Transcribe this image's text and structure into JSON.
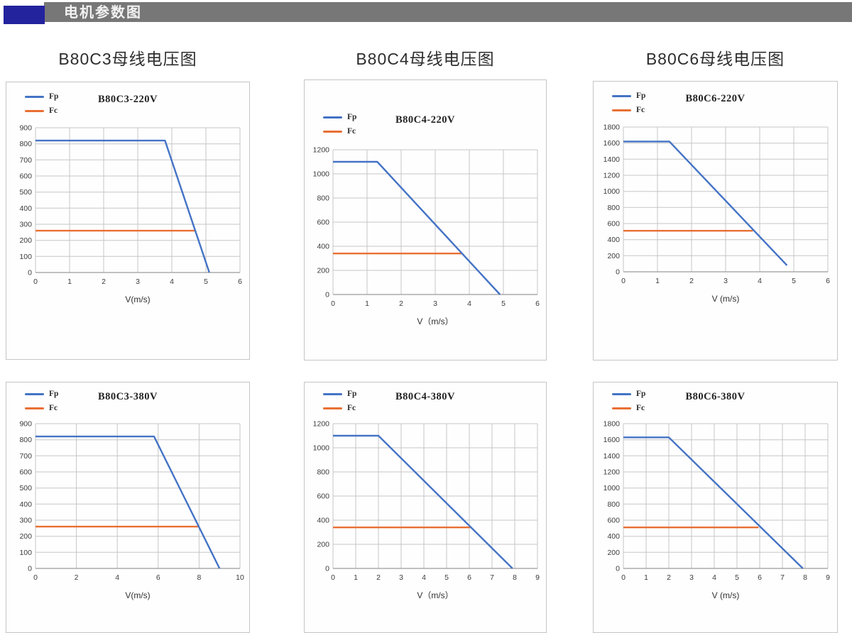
{
  "header": {
    "label": "电机参数图"
  },
  "columns": [
    {
      "title": "B80C3母线电压图"
    },
    {
      "title": "B80C4母线电压图"
    },
    {
      "title": "B80C6母线电压图"
    }
  ],
  "colors": {
    "fp": "#4473c5",
    "fc": "#e96f33",
    "grid": "#c6c6c6",
    "axis": "#9b9b9b",
    "accent_blue": "#23239e",
    "header_gray": "#777777"
  },
  "chart_data": [
    {
      "type": "line",
      "title": "B80C3-220V",
      "xlabel": "V(m/s)",
      "xlim": [
        0,
        6
      ],
      "xticks": [
        0,
        1,
        2,
        3,
        4,
        5,
        6
      ],
      "ylim": [
        0,
        900
      ],
      "yticks": [
        0,
        100,
        200,
        300,
        400,
        500,
        600,
        700,
        800,
        900
      ],
      "grid": true,
      "legend_position": "top-left",
      "series": [
        {
          "name": "Fp",
          "color_key": "fp",
          "points": [
            [
              0,
              820
            ],
            [
              3.8,
              820
            ],
            [
              5.1,
              0
            ]
          ]
        },
        {
          "name": "Fc",
          "color_key": "fc",
          "points": [
            [
              0,
              260
            ],
            [
              4.7,
              260
            ]
          ]
        }
      ]
    },
    {
      "type": "line",
      "title": "B80C4-220V",
      "xlabel": "V（m/s）",
      "xlim": [
        0,
        6
      ],
      "xticks": [
        0,
        1,
        2,
        3,
        4,
        5,
        6
      ],
      "ylim": [
        0,
        1200
      ],
      "yticks": [
        0,
        200,
        400,
        600,
        800,
        1000,
        1200
      ],
      "grid": true,
      "legend_position": "top-left",
      "series": [
        {
          "name": "Fp",
          "color_key": "fp",
          "points": [
            [
              0,
              1100
            ],
            [
              1.3,
              1100
            ],
            [
              4.9,
              0
            ]
          ]
        },
        {
          "name": "Fc",
          "color_key": "fc",
          "points": [
            [
              0,
              340
            ],
            [
              3.8,
              340
            ]
          ]
        }
      ]
    },
    {
      "type": "line",
      "title": "B80C6-220V",
      "xlabel": "V (m/s)",
      "xlim": [
        0,
        6
      ],
      "xticks": [
        0,
        1,
        2,
        3,
        4,
        5,
        6
      ],
      "ylim": [
        0,
        1800
      ],
      "yticks": [
        0,
        200,
        400,
        600,
        800,
        1000,
        1200,
        1400,
        1600,
        1800
      ],
      "grid": true,
      "legend_position": "top-left",
      "series": [
        {
          "name": "Fp",
          "color_key": "fp",
          "points": [
            [
              0,
              1620
            ],
            [
              1.35,
              1620
            ],
            [
              4.8,
              80
            ]
          ]
        },
        {
          "name": "Fc",
          "color_key": "fc",
          "points": [
            [
              0,
              510
            ],
            [
              3.8,
              510
            ]
          ]
        }
      ]
    },
    {
      "type": "line",
      "title": "B80C3-380V",
      "xlabel": "V(m/s)",
      "xlim": [
        0,
        10
      ],
      "xticks": [
        0,
        2,
        4,
        6,
        8,
        10
      ],
      "ylim": [
        0,
        900
      ],
      "yticks": [
        0,
        100,
        200,
        300,
        400,
        500,
        600,
        700,
        800,
        900
      ],
      "grid": true,
      "legend_position": "top-left",
      "series": [
        {
          "name": "Fp",
          "color_key": "fp",
          "points": [
            [
              0,
              820
            ],
            [
              5.8,
              820
            ],
            [
              9.0,
              0
            ]
          ]
        },
        {
          "name": "Fc",
          "color_key": "fc",
          "points": [
            [
              0,
              260
            ],
            [
              8.0,
              260
            ]
          ]
        }
      ]
    },
    {
      "type": "line",
      "title": "B80C4-380V",
      "xlabel": "V（m/s）",
      "xlim": [
        0,
        9
      ],
      "xticks": [
        0,
        1,
        2,
        3,
        4,
        5,
        6,
        7,
        8,
        9
      ],
      "ylim": [
        0,
        1200
      ],
      "yticks": [
        0,
        200,
        400,
        600,
        800,
        1000,
        1200
      ],
      "grid": true,
      "legend_position": "top-left",
      "series": [
        {
          "name": "Fp",
          "color_key": "fp",
          "points": [
            [
              0,
              1100
            ],
            [
              2.0,
              1100
            ],
            [
              7.9,
              0
            ]
          ]
        },
        {
          "name": "Fc",
          "color_key": "fc",
          "points": [
            [
              0,
              340
            ],
            [
              6.05,
              340
            ]
          ]
        }
      ]
    },
    {
      "type": "line",
      "title": "B80C6-380V",
      "xlabel": "V (m/s)",
      "xlim": [
        0,
        9
      ],
      "xticks": [
        0,
        1,
        2,
        3,
        4,
        5,
        6,
        7,
        8,
        9
      ],
      "ylim": [
        0,
        1800
      ],
      "yticks": [
        0,
        200,
        400,
        600,
        800,
        1000,
        1200,
        1400,
        1600,
        1800
      ],
      "grid": true,
      "legend_position": "top-left",
      "series": [
        {
          "name": "Fp",
          "color_key": "fp",
          "points": [
            [
              0,
              1630
            ],
            [
              2.0,
              1630
            ],
            [
              7.9,
              0
            ]
          ]
        },
        {
          "name": "Fc",
          "color_key": "fc",
          "points": [
            [
              0,
              510
            ],
            [
              5.95,
              510
            ]
          ]
        }
      ]
    }
  ]
}
